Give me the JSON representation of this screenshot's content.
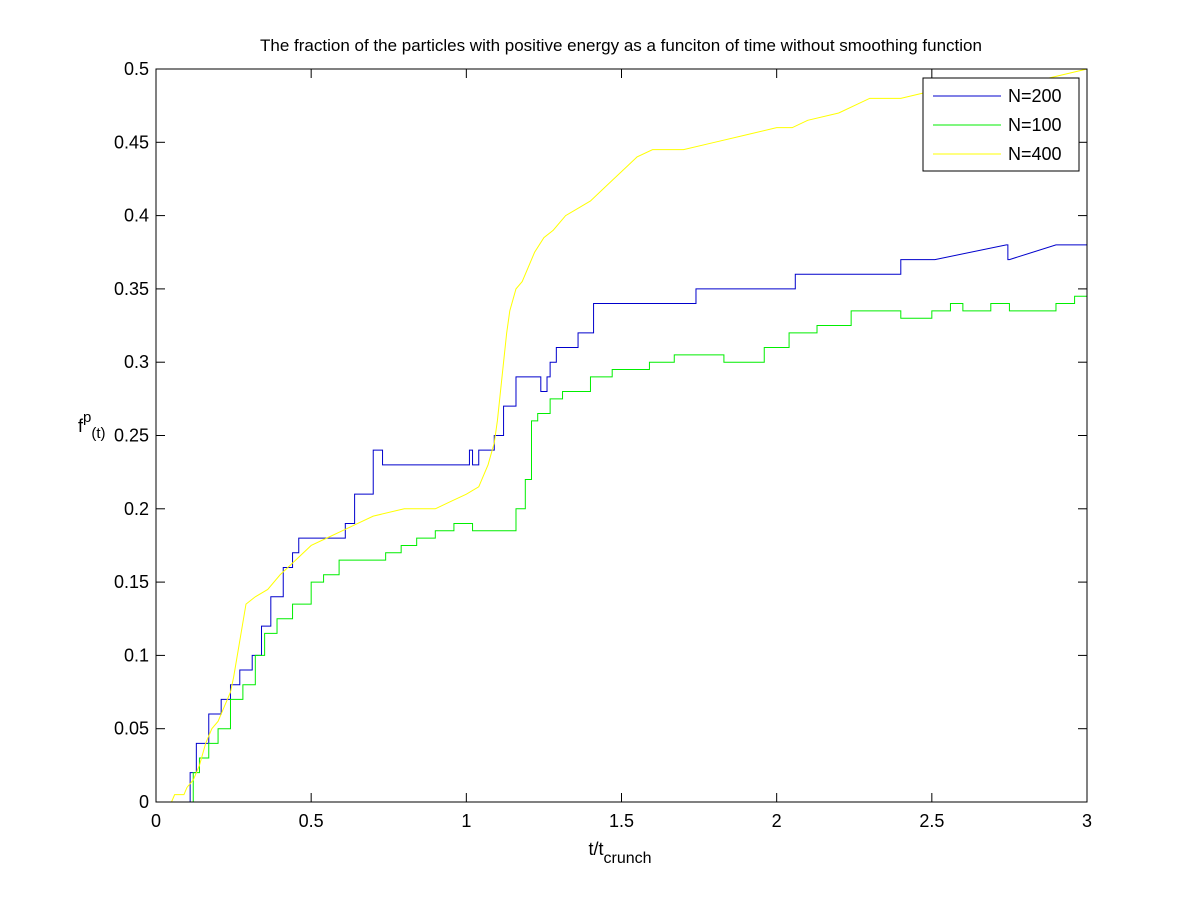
{
  "chart_data": {
    "type": "line",
    "title": "The fraction of the particles with positive energy as a funciton of time without smoothing function",
    "xlabel": {
      "base": "t/t",
      "sub": "crunch"
    },
    "ylabel": {
      "base": "f",
      "sup": "p",
      "sub": "(t)"
    },
    "xlim": [
      0,
      3
    ],
    "ylim": [
      0,
      0.5
    ],
    "xticks": [
      0,
      0.5,
      1,
      1.5,
      2,
      2.5,
      3
    ],
    "xtick_labels": [
      "0",
      "0.5",
      "1",
      "1.5",
      "2",
      "2.5",
      "3"
    ],
    "yticks": [
      0,
      0.05,
      0.1,
      0.15,
      0.2,
      0.25,
      0.3,
      0.35,
      0.4,
      0.45,
      0.5
    ],
    "ytick_labels": [
      "0",
      "0.05",
      "0.1",
      "0.15",
      "0.2",
      "0.25",
      "0.3",
      "0.35",
      "0.4",
      "0.45",
      "0.5"
    ],
    "grid": false,
    "legend_position": "top-right",
    "series": [
      {
        "name": "N=200",
        "color": "#0000cc",
        "x": [
          0,
          0.11,
          0.11,
          0.13,
          0.13,
          0.17,
          0.17,
          0.21,
          0.21,
          0.24,
          0.24,
          0.27,
          0.27,
          0.31,
          0.31,
          0.34,
          0.34,
          0.37,
          0.37,
          0.41,
          0.41,
          0.44,
          0.44,
          0.46,
          0.46,
          0.48,
          0.48,
          0.61,
          0.61,
          0.64,
          0.64,
          0.7,
          0.7,
          0.73,
          0.73,
          0.84,
          0.84,
          1.01,
          1.01,
          1.02,
          1.02,
          1.04,
          1.04,
          1.09,
          1.09,
          1.12,
          1.12,
          1.16,
          1.16,
          1.24,
          1.24,
          1.26,
          1.26,
          1.27,
          1.27,
          1.29,
          1.29,
          1.34,
          1.34,
          1.36,
          1.36,
          1.41,
          1.41,
          1.74,
          1.74,
          2.06,
          2.06,
          2.4,
          2.4,
          2.51,
          2.51,
          2.74,
          2.745,
          2.745,
          2.75,
          2.75,
          2.9,
          2.9,
          3.0
        ],
        "y": [
          0,
          0,
          0.02,
          0.02,
          0.04,
          0.04,
          0.06,
          0.06,
          0.07,
          0.07,
          0.08,
          0.08,
          0.09,
          0.09,
          0.1,
          0.1,
          0.12,
          0.12,
          0.14,
          0.14,
          0.16,
          0.16,
          0.17,
          0.17,
          0.18,
          0.18,
          0.18,
          0.18,
          0.19,
          0.19,
          0.21,
          0.21,
          0.24,
          0.24,
          0.23,
          0.23,
          0.23,
          0.23,
          0.24,
          0.24,
          0.23,
          0.23,
          0.24,
          0.24,
          0.25,
          0.25,
          0.27,
          0.27,
          0.29,
          0.29,
          0.28,
          0.28,
          0.29,
          0.29,
          0.3,
          0.3,
          0.31,
          0.31,
          0.31,
          0.31,
          0.32,
          0.32,
          0.34,
          0.34,
          0.35,
          0.35,
          0.36,
          0.36,
          0.37,
          0.37,
          0.37,
          0.38,
          0.38,
          0.37,
          0.37,
          0.37,
          0.38,
          0.38,
          0.38
        ]
      },
      {
        "name": "N=100",
        "color": "#00ee00",
        "x": [
          0,
          0.12,
          0.12,
          0.14,
          0.14,
          0.17,
          0.17,
          0.2,
          0.2,
          0.24,
          0.24,
          0.28,
          0.28,
          0.32,
          0.32,
          0.35,
          0.35,
          0.39,
          0.39,
          0.44,
          0.44,
          0.5,
          0.5,
          0.54,
          0.54,
          0.59,
          0.59,
          0.74,
          0.74,
          0.79,
          0.79,
          0.84,
          0.84,
          0.9,
          0.9,
          0.96,
          0.96,
          1.02,
          1.02,
          1.16,
          1.16,
          1.19,
          1.19,
          1.21,
          1.21,
          1.23,
          1.23,
          1.27,
          1.27,
          1.31,
          1.31,
          1.4,
          1.4,
          1.47,
          1.47,
          1.59,
          1.59,
          1.67,
          1.67,
          1.83,
          1.83,
          1.96,
          1.96,
          2.04,
          2.04,
          2.13,
          2.13,
          2.24,
          2.24,
          2.4,
          2.4,
          2.5,
          2.5,
          2.56,
          2.56,
          2.6,
          2.6,
          2.69,
          2.69,
          2.75,
          2.75,
          2.9,
          2.9,
          2.96,
          2.96,
          3.0
        ],
        "y": [
          0,
          0,
          0.02,
          0.02,
          0.03,
          0.03,
          0.04,
          0.04,
          0.05,
          0.05,
          0.07,
          0.07,
          0.08,
          0.08,
          0.1,
          0.1,
          0.115,
          0.115,
          0.125,
          0.125,
          0.135,
          0.135,
          0.15,
          0.15,
          0.155,
          0.155,
          0.165,
          0.165,
          0.17,
          0.17,
          0.175,
          0.175,
          0.18,
          0.18,
          0.185,
          0.185,
          0.19,
          0.19,
          0.185,
          0.185,
          0.2,
          0.2,
          0.22,
          0.22,
          0.26,
          0.26,
          0.265,
          0.265,
          0.275,
          0.275,
          0.28,
          0.28,
          0.29,
          0.29,
          0.295,
          0.295,
          0.3,
          0.3,
          0.305,
          0.305,
          0.3,
          0.3,
          0.31,
          0.31,
          0.32,
          0.32,
          0.325,
          0.325,
          0.335,
          0.335,
          0.33,
          0.33,
          0.335,
          0.335,
          0.34,
          0.34,
          0.335,
          0.335,
          0.34,
          0.34,
          0.335,
          0.335,
          0.34,
          0.34,
          0.345,
          0.345
        ]
      },
      {
        "name": "N=400",
        "color": "#ffff00",
        "x": [
          0,
          0.05,
          0.06,
          0.09,
          0.1,
          0.12,
          0.14,
          0.16,
          0.18,
          0.2,
          0.22,
          0.24,
          0.25,
          0.27,
          0.29,
          0.32,
          0.36,
          0.4,
          0.45,
          0.5,
          0.55,
          0.6,
          0.65,
          0.7,
          0.8,
          0.9,
          0.95,
          1.0,
          1.04,
          1.07,
          1.09,
          1.1,
          1.11,
          1.12,
          1.13,
          1.14,
          1.16,
          1.18,
          1.2,
          1.22,
          1.25,
          1.28,
          1.32,
          1.36,
          1.4,
          1.45,
          1.5,
          1.55,
          1.6,
          1.65,
          1.7,
          1.8,
          1.9,
          2.0,
          2.05,
          2.1,
          2.2,
          2.3,
          2.4,
          2.5,
          2.6,
          2.7,
          2.8,
          2.9,
          3.0
        ],
        "y": [
          0,
          0.0,
          0.005,
          0.005,
          0.01,
          0.015,
          0.025,
          0.04,
          0.05,
          0.055,
          0.065,
          0.075,
          0.085,
          0.11,
          0.135,
          0.14,
          0.145,
          0.155,
          0.165,
          0.175,
          0.18,
          0.185,
          0.19,
          0.195,
          0.2,
          0.2,
          0.205,
          0.21,
          0.215,
          0.23,
          0.245,
          0.26,
          0.28,
          0.3,
          0.32,
          0.335,
          0.35,
          0.355,
          0.365,
          0.375,
          0.385,
          0.39,
          0.4,
          0.405,
          0.41,
          0.42,
          0.43,
          0.44,
          0.445,
          0.445,
          0.445,
          0.45,
          0.455,
          0.46,
          0.46,
          0.465,
          0.47,
          0.48,
          0.48,
          0.485,
          0.485,
          0.49,
          0.49,
          0.495,
          0.5
        ]
      }
    ]
  }
}
